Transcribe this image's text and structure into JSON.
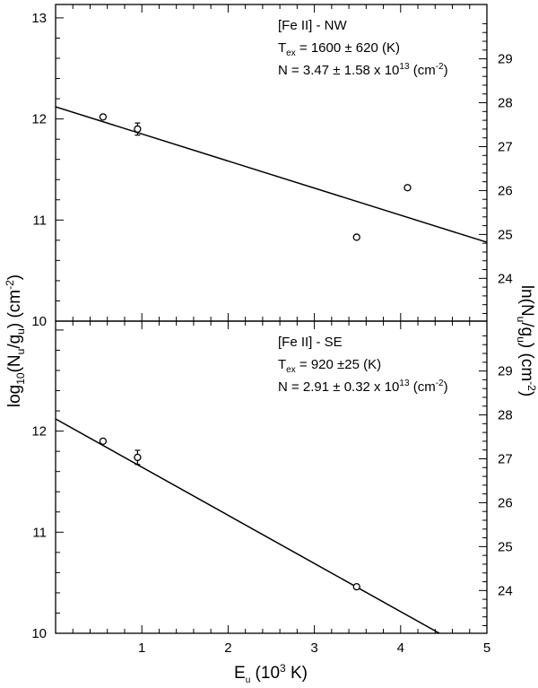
{
  "chart_data": [
    {
      "type": "scatter",
      "panel": "top",
      "xlim": [
        0,
        5
      ],
      "ylim": [
        10,
        13
      ],
      "ylim_right": [
        23.03,
        29.93
      ],
      "x_ticks": [
        "1",
        "2",
        "3",
        "4",
        "5"
      ],
      "y_ticks": [
        "10",
        "11",
        "12",
        "13"
      ],
      "y_ticks_right": [
        "24",
        "25",
        "26",
        "27",
        "28",
        "29"
      ],
      "points": [
        {
          "x": 0.55,
          "y": 12.02,
          "err": 0.02
        },
        {
          "x": 0.95,
          "y": 11.9,
          "err": 0.06
        },
        {
          "x": 3.49,
          "y": 10.83,
          "err": 0.02
        },
        {
          "x": 4.08,
          "y": 11.32,
          "err": 0.02
        }
      ],
      "fit": {
        "x": [
          0,
          5
        ],
        "y": [
          12.12,
          10.78
        ]
      },
      "annotation": {
        "line1": "[Fe II] - NW",
        "tex_prefix": "T",
        "tex_sub": "ex",
        "tex_value": " = 1600 ± 620 (K)",
        "n_prefix": "N = 3.47 ± 1.58 x 10",
        "n_exp": "13",
        "n_unit": " (cm",
        "n_unit_exp": "-2",
        "n_unit_close": ")"
      }
    },
    {
      "type": "scatter",
      "panel": "bottom",
      "xlim": [
        0,
        5
      ],
      "ylim": [
        10,
        13
      ],
      "ylim_right": [
        23.03,
        29.93
      ],
      "x_ticks": [
        "1",
        "2",
        "3",
        "4",
        "5"
      ],
      "y_ticks": [
        "10",
        "11",
        "12"
      ],
      "y_ticks_right": [
        "24",
        "25",
        "26",
        "27",
        "28",
        "29"
      ],
      "points": [
        {
          "x": 0.55,
          "y": 11.9,
          "err": 0.02
        },
        {
          "x": 0.95,
          "y": 11.74,
          "err": 0.07
        },
        {
          "x": 3.49,
          "y": 10.46,
          "err": 0.02
        }
      ],
      "fit": {
        "x": [
          0,
          4.45
        ],
        "y": [
          12.12,
          10.0
        ]
      },
      "annotation": {
        "line1": "[Fe II] - SE",
        "tex_prefix": "T",
        "tex_sub": "ex",
        "tex_value": " = 920 ±25 (K)",
        "n_prefix": "N = 2.91 ± 0.32 x 10",
        "n_exp": "13",
        "n_unit": " (cm",
        "n_unit_exp": "-2",
        "n_unit_close": ")"
      }
    }
  ],
  "axes": {
    "xlabel_main": "E",
    "xlabel_sub": "u",
    "xlabel_rest": " (10",
    "xlabel_sup": "3",
    "xlabel_end": " K)",
    "ylabel_left_prefix": "log",
    "ylabel_left_sub": "10",
    "ylabel_left_mid": "(N",
    "ylabel_left_sub2": "u",
    "ylabel_left_mid2": "/g",
    "ylabel_left_sub3": "u",
    "ylabel_left_mid3": ") (cm",
    "ylabel_left_sup": "-2",
    "ylabel_left_end": ")",
    "ylabel_right_prefix": "ln(N",
    "ylabel_right_sub": "u",
    "ylabel_right_mid": "/g",
    "ylabel_right_sub2": "u",
    "ylabel_right_mid2": ") (cm",
    "ylabel_right_sup": "-2",
    "ylabel_right_end": ")"
  }
}
